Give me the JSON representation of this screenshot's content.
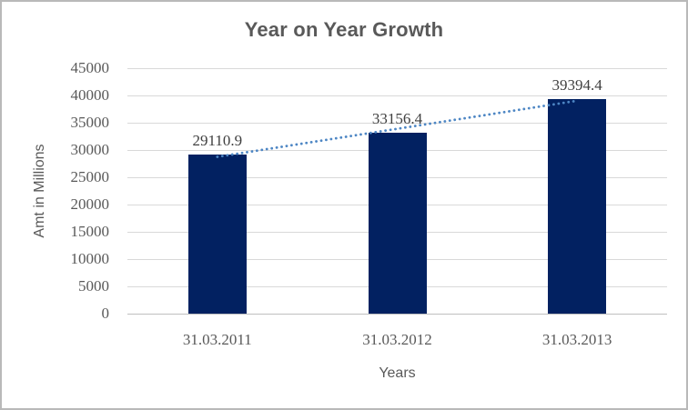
{
  "chart_data": {
    "type": "bar",
    "title": "Year on Year Growth",
    "xlabel": "Years",
    "ylabel": "Amt in Millions",
    "categories": [
      "31.03.2011",
      "31.03.2012",
      "31.03.2013"
    ],
    "values": [
      29110.9,
      33156.4,
      39394.4
    ],
    "data_labels": [
      "29110.9",
      "33156.4",
      "39394.4"
    ],
    "ylim": [
      0,
      45000
    ],
    "y_tick_step": 5000,
    "y_tick_labels": [
      "0",
      "5000",
      "10000",
      "15000",
      "20000",
      "25000",
      "30000",
      "35000",
      "40000",
      "45000"
    ],
    "grid": true,
    "legend": "none",
    "trendline": {
      "type": "linear",
      "style": "dotted"
    },
    "colors": {
      "bar": "#022161",
      "trendline": "#4d86c4",
      "gridline": "#d9d9d9",
      "axis_line": "#bfbfbf",
      "title_text": "#595959",
      "tick_text": "#595959",
      "data_label_text": "#3f3f3f",
      "chart_border": "#b9b9b9"
    }
  }
}
